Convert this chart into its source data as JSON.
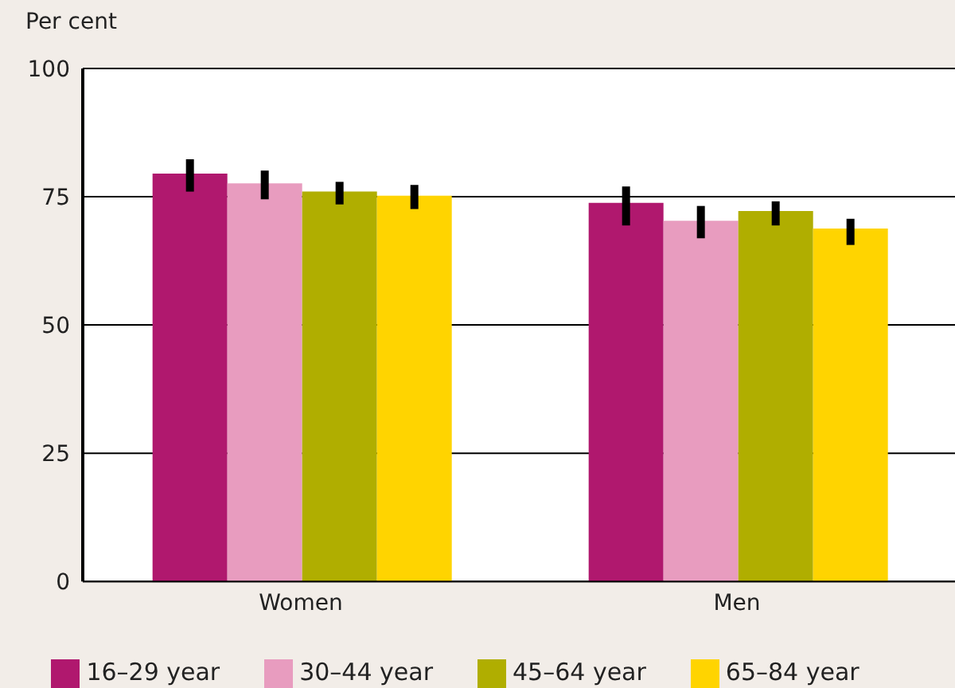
{
  "chart_data": {
    "type": "bar",
    "ylabel": "Per cent",
    "categories": [
      "Women",
      "Men"
    ],
    "series": [
      {
        "name": "16–29 year",
        "color": "#b0186e",
        "values": [
          79.5,
          73.8
        ],
        "errors": [
          [
            76.0,
            82.3
          ],
          [
            69.4,
            77.0
          ]
        ]
      },
      {
        "name": "30–44 year",
        "color": "#e89cbf",
        "values": [
          77.6,
          70.3
        ],
        "errors": [
          [
            74.5,
            80.1
          ],
          [
            66.9,
            73.2
          ]
        ]
      },
      {
        "name": "45–64 year",
        "color": "#b0ae00",
        "values": [
          76.0,
          72.2
        ],
        "errors": [
          [
            73.5,
            77.9
          ],
          [
            69.4,
            74.1
          ]
        ]
      },
      {
        "name": "65–84 year",
        "color": "#ffd400",
        "values": [
          75.2,
          68.8
        ],
        "errors": [
          [
            72.6,
            77.3
          ],
          [
            65.6,
            70.7
          ]
        ]
      }
    ],
    "ylim": [
      0,
      100
    ],
    "yticks": [
      0,
      25,
      50,
      75,
      100
    ],
    "grid": "y",
    "legend": "bottom"
  }
}
